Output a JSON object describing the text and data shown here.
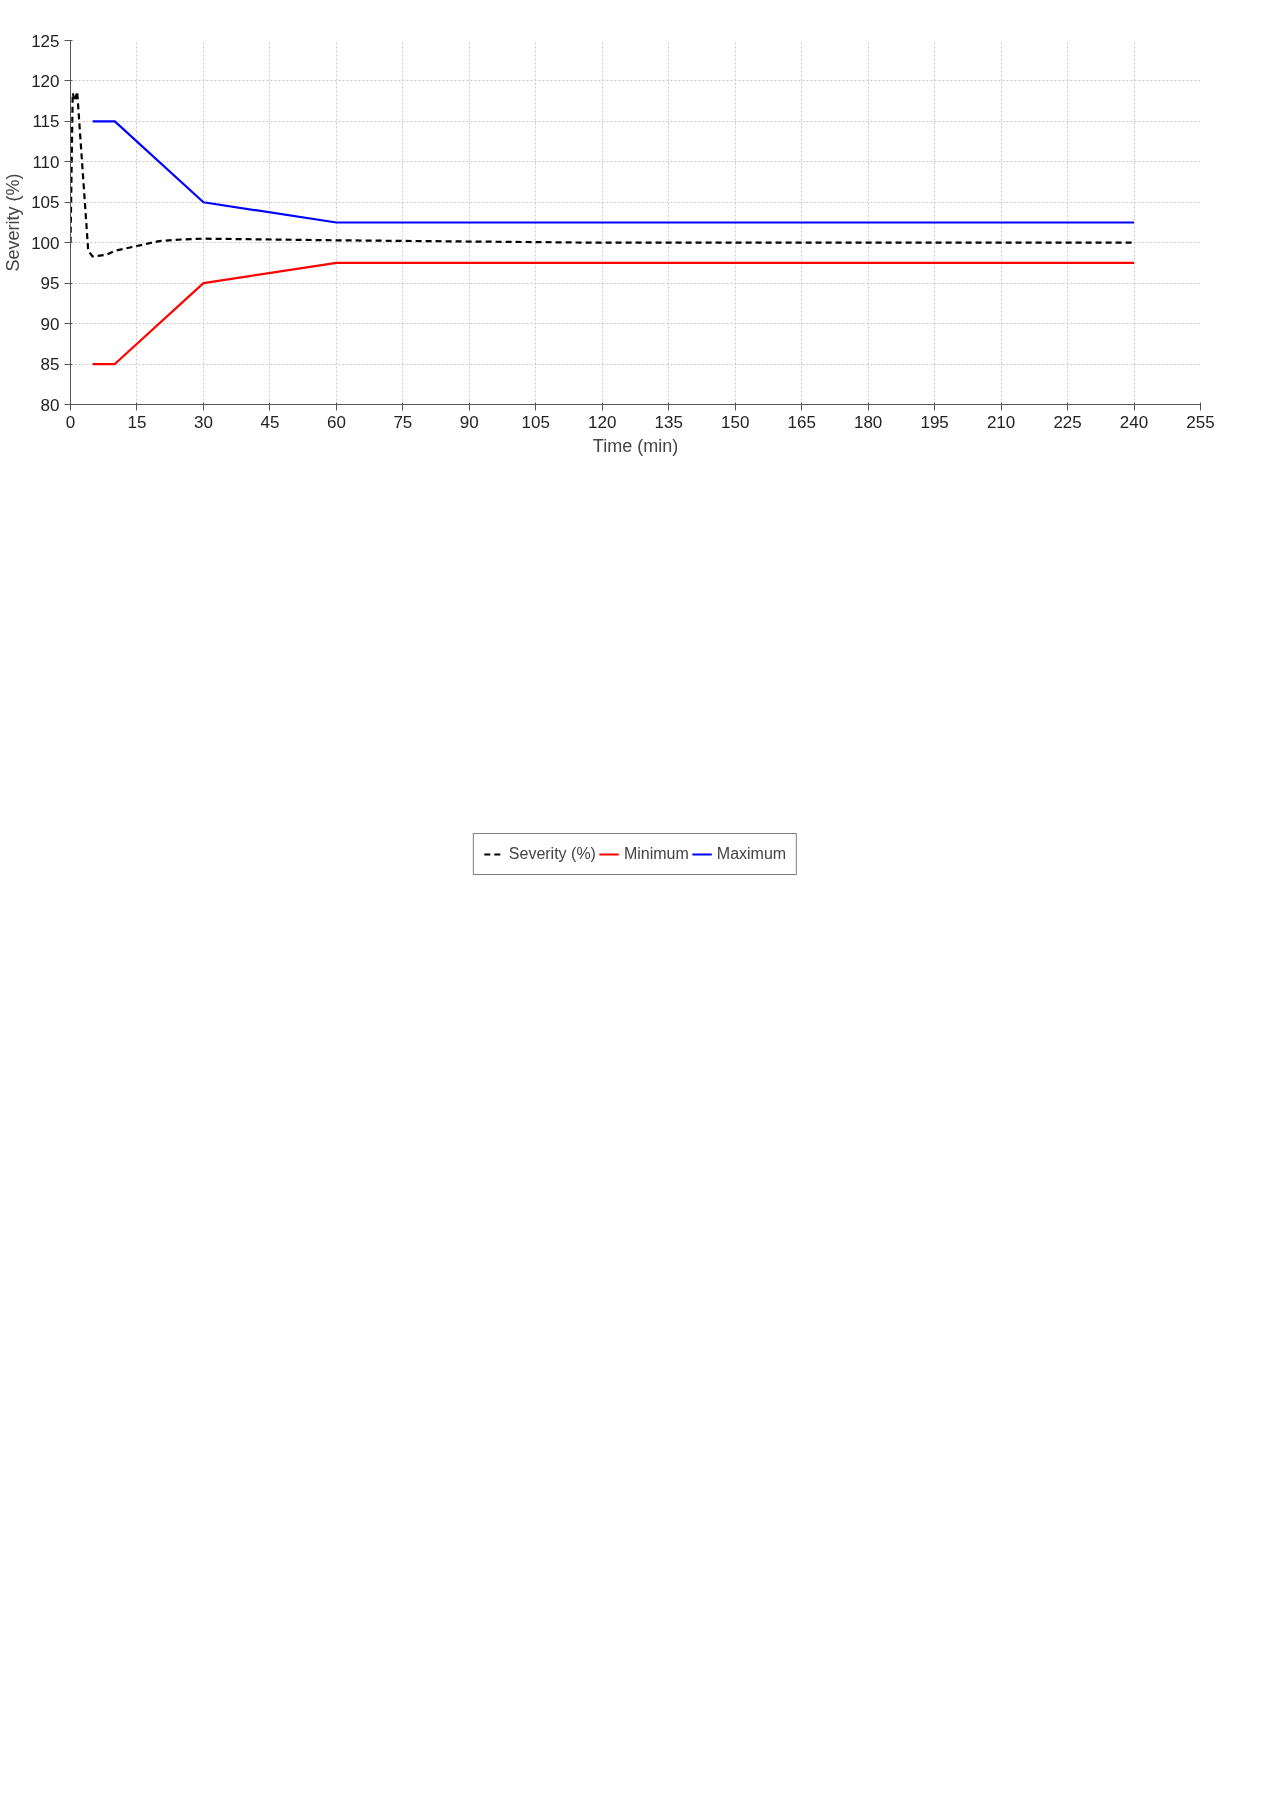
{
  "chart_data": {
    "type": "line",
    "xlabel": "Time (min)",
    "ylabel": "Severity (%)",
    "xlim": [
      0,
      255
    ],
    "xticks": [
      0,
      15,
      30,
      45,
      60,
      75,
      90,
      105,
      120,
      135,
      150,
      165,
      180,
      195,
      210,
      225,
      240,
      255
    ],
    "ylim": [
      80,
      125
    ],
    "yticks": [
      80,
      85,
      90,
      95,
      100,
      105,
      110,
      115,
      120,
      125
    ],
    "grid": true,
    "legend": "bottom",
    "series": [
      {
        "name": "Severity (%)",
        "color": "#000000",
        "line_style": "dashed",
        "x": [
          0,
          0.5,
          1,
          1.5,
          4,
          5,
          8,
          10,
          15,
          20,
          25,
          30,
          60,
          120,
          240
        ],
        "values": [
          100,
          118.5,
          117.5,
          118.7,
          99,
          98.3,
          98.5,
          99,
          99.6,
          100.2,
          100.4,
          100.5,
          100.3,
          100,
          100
        ]
      },
      {
        "name": "Minimum",
        "color": "#ff0000",
        "line_style": "solid",
        "x": [
          5,
          10,
          30,
          60,
          240
        ],
        "values": [
          85,
          85,
          95,
          97.5,
          97.5
        ]
      },
      {
        "name": "Maximum",
        "color": "#0000ff",
        "line_style": "solid",
        "x": [
          5,
          10,
          30,
          60,
          240
        ],
        "values": [
          115,
          115,
          105,
          102.5,
          102.5
        ]
      }
    ]
  }
}
